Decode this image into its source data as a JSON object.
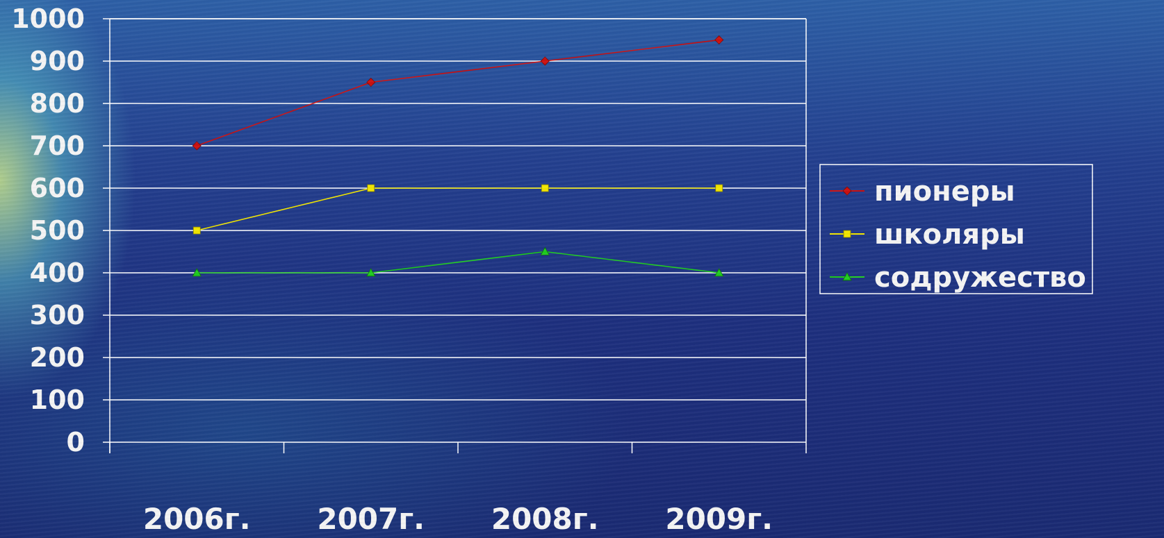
{
  "chart_data": {
    "type": "line",
    "categories": [
      "2006г.",
      "2007г.",
      "2008г.",
      "2009г."
    ],
    "ylim": [
      0,
      1000
    ],
    "yticks": [
      0,
      100,
      200,
      300,
      400,
      500,
      600,
      700,
      800,
      900,
      1000
    ],
    "grid": true,
    "legend_position": "right",
    "series": [
      {
        "name": "пионеры",
        "values": [
          700,
          850,
          900,
          950
        ],
        "color": "#cc1010",
        "marker": "diamond"
      },
      {
        "name": "школяры",
        "values": [
          500,
          600,
          600,
          600
        ],
        "color": "#f2e600",
        "marker": "square"
      },
      {
        "name": "содружество",
        "values": [
          400,
          400,
          450,
          400
        ],
        "color": "#1fcc1f",
        "marker": "triangle"
      }
    ]
  }
}
